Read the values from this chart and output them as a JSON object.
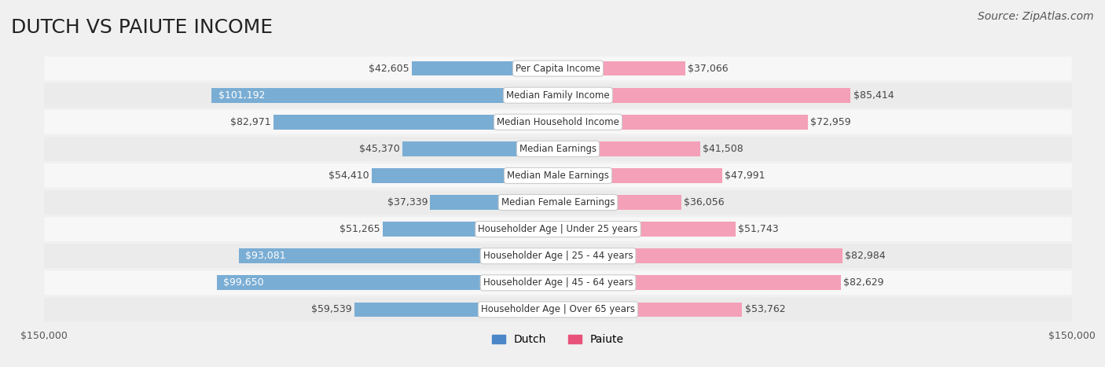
{
  "title": "DUTCH VS PAIUTE INCOME",
  "source": "Source: ZipAtlas.com",
  "categories": [
    "Per Capita Income",
    "Median Family Income",
    "Median Household Income",
    "Median Earnings",
    "Median Male Earnings",
    "Median Female Earnings",
    "Householder Age | Under 25 years",
    "Householder Age | 25 - 44 years",
    "Householder Age | 45 - 64 years",
    "Householder Age | Over 65 years"
  ],
  "dutch_values": [
    42605,
    101192,
    82971,
    45370,
    54410,
    37339,
    51265,
    93081,
    99650,
    59539
  ],
  "paiute_values": [
    37066,
    85414,
    72959,
    41508,
    47991,
    36056,
    51743,
    82984,
    82629,
    53762
  ],
  "dutch_color": "#7aadd4",
  "dutch_color_dark": "#4a86c8",
  "paiute_color": "#f4a0b8",
  "paiute_color_dark": "#e8527a",
  "max_value": 150000,
  "background_color": "#f0f0f0",
  "row_bg_color": "#f7f7f7",
  "row_bg_color_alt": "#ebebeb",
  "label_box_color": "#ffffff",
  "label_box_border": "#cccccc",
  "title_fontsize": 18,
  "source_fontsize": 10,
  "value_fontsize": 9,
  "category_fontsize": 8.5,
  "axis_label_fontsize": 9,
  "legend_fontsize": 10
}
